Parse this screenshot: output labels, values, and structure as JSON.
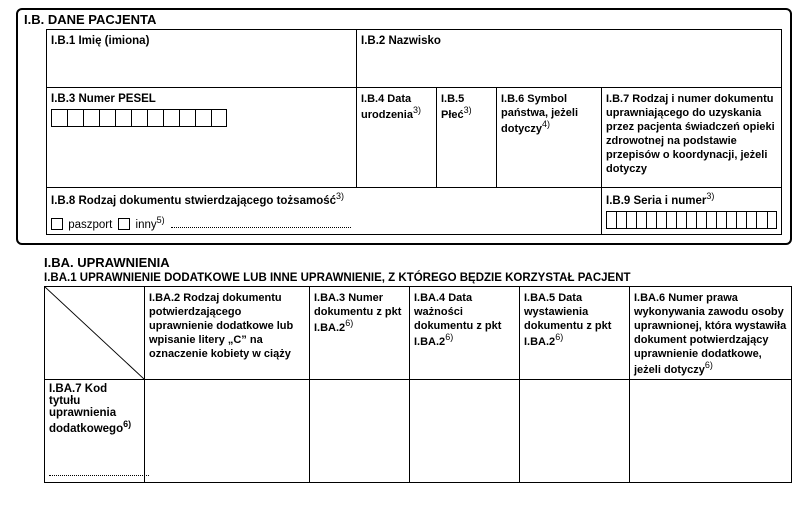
{
  "colors": {
    "border": "#000000",
    "text": "#000000",
    "bg": "#ffffff"
  },
  "sectionIB": {
    "title": "I.B. DANE PACJENTA",
    "ib1": "I.B.1 Imię (imiona)",
    "ib2": "I.B.2 Nazwisko",
    "ib3": "I.B.3 Numer PESEL",
    "ib3_comb_count": 11,
    "ib4": "I.B.4 Data urodzenia",
    "ib4_sup": "3)",
    "ib5": "I.B.5 Płeć",
    "ib5_sup": "3)",
    "ib6": "I.B.6 Symbol państwa, jeżeli dotyczy",
    "ib6_sup": "4)",
    "ib7": "I.B.7 Rodzaj i numer dokumentu uprawniającego do uzyskania przez pacjenta świadczeń opieki zdrowotnej na podstawie przepisów o koordynacji, jeżeli dotyczy",
    "ib8": "I.B.8 Rodzaj dokumentu stwierdzającego tożsamość",
    "ib8_sup": "3)",
    "ib8_paszport": "paszport",
    "ib8_inny": "inny",
    "ib8_inny_sup": "5)",
    "ib9": "I.B.9 Seria i numer",
    "ib9_sup": "3)",
    "ib9_comb_count": 17
  },
  "sectionIBA": {
    "title": "I.BA. UPRAWNIENIA",
    "subtitle": "I.BA.1 UPRAWNIENIE DODATKOWE LUB INNE UPRAWNIENIE, Z KTÓREGO BĘDZIE KORZYSTAŁ PACJENT",
    "iba2": "I.BA.2 Rodzaj dokumentu potwierdzającego uprawnienie dodatkowe lub wpisanie litery „C” na oznaczenie kobiety w ciąży",
    "iba3": "I.BA.3 Numer dokumentu z pkt I.BA.2",
    "iba3_sup": "6)",
    "iba4": "I.BA.4 Data ważności dokumentu z pkt I.BA.2",
    "iba4_sup": "6)",
    "iba5": "I.BA.5 Data wystawienia dokumentu z pkt I.BA.2",
    "iba5_sup": "6)",
    "iba6": "I.BA.6 Numer prawa wykonywania zawodu osoby uprawnionej, która wystawiła dokument potwierdzający uprawnienie dodatkowe, jeżeli dotyczy",
    "iba6_sup": "6)",
    "iba7": "I.BA.7 Kod tytułu uprawnienia dodatkowego",
    "iba7_sup": "6)"
  }
}
